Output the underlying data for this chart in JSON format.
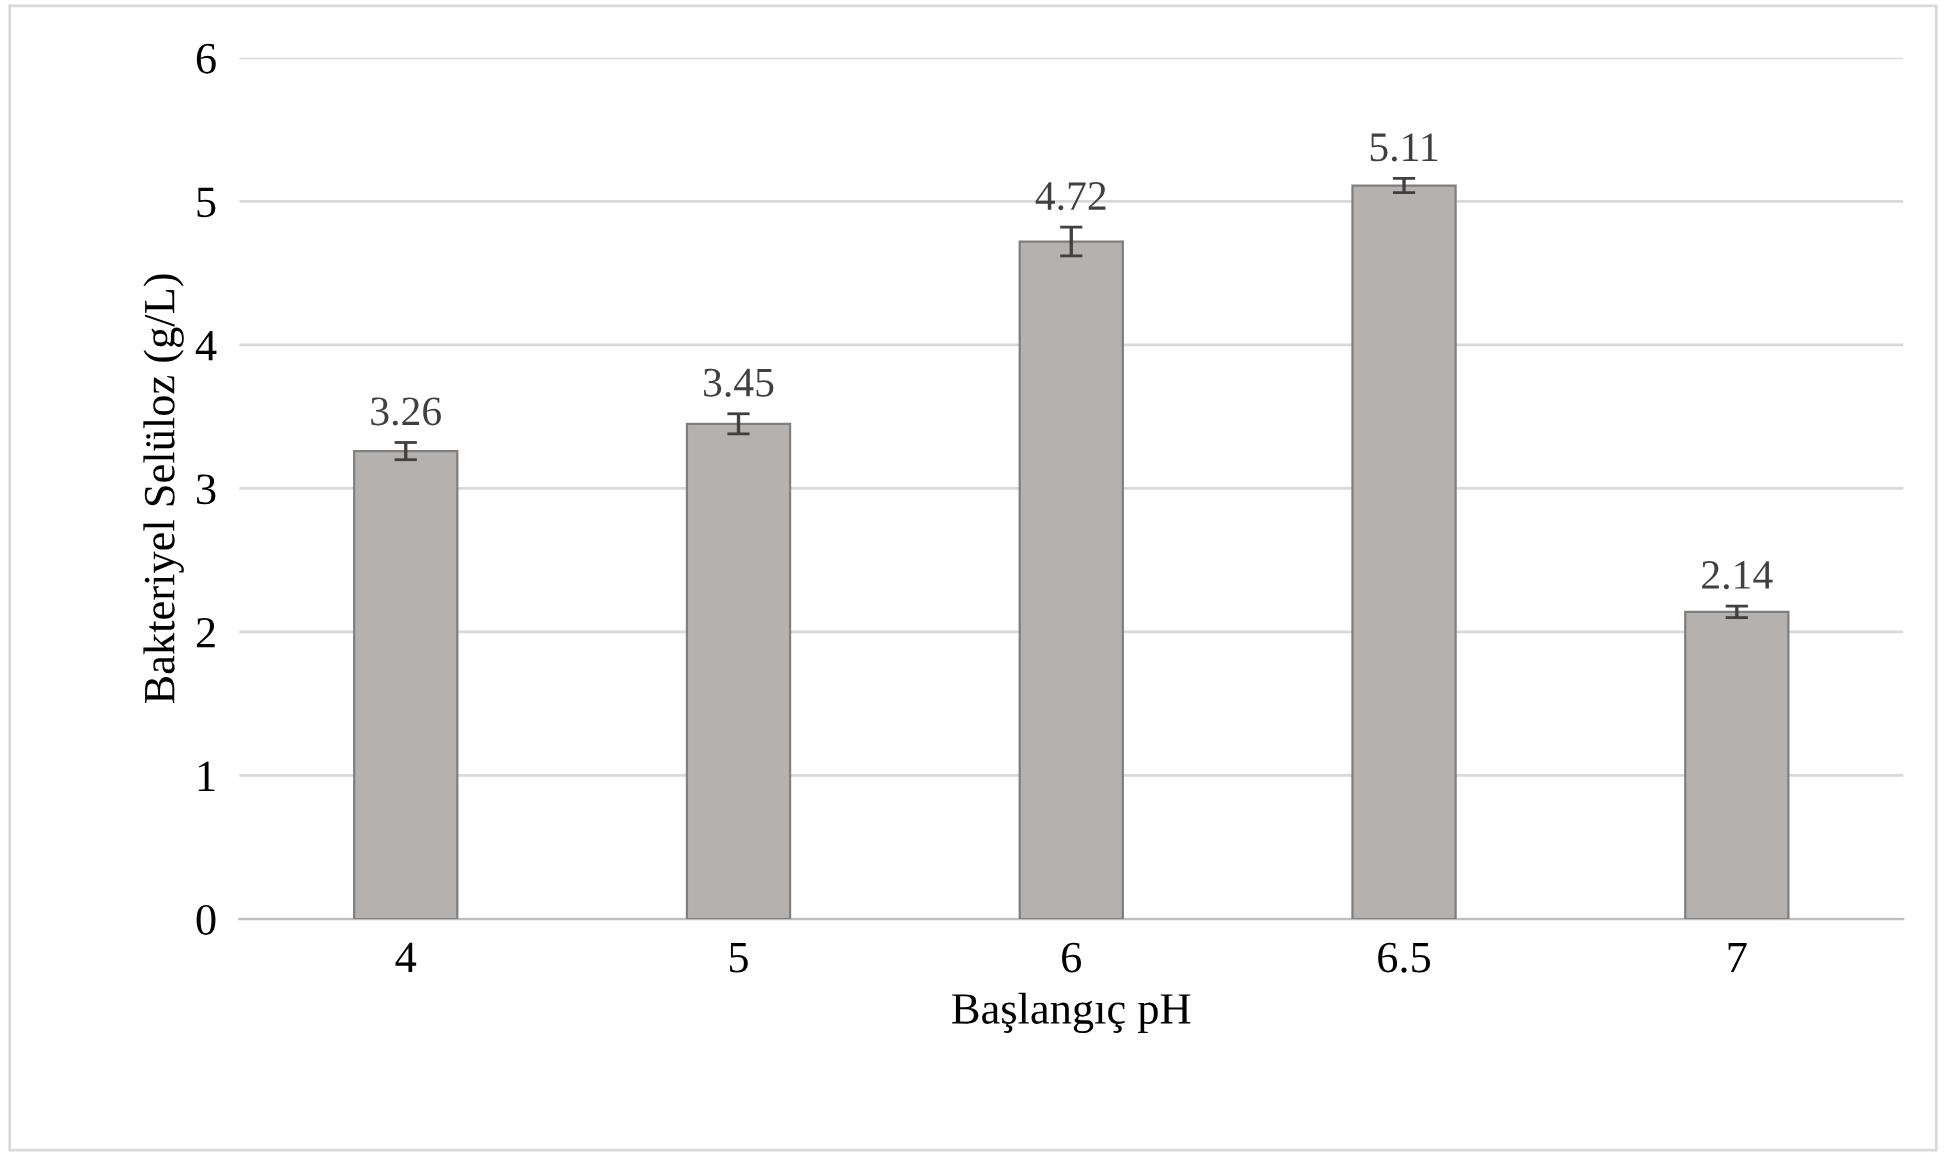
{
  "chart_data": {
    "type": "bar",
    "xlabel": "Başlangıç pH",
    "ylabel": "Bakteriyel Selüloz (g/L)",
    "categories": [
      "4",
      "5",
      "6",
      "6.5",
      "7"
    ],
    "values": [
      3.26,
      3.45,
      4.72,
      5.11,
      2.14
    ],
    "errors": [
      0.06,
      0.07,
      0.1,
      0.05,
      0.04
    ],
    "color": "#b5b1ae",
    "ylim": [
      0,
      6
    ],
    "yticks": [
      0,
      1,
      2,
      3,
      4,
      5,
      6
    ],
    "grid": "y",
    "data_labels": true
  }
}
